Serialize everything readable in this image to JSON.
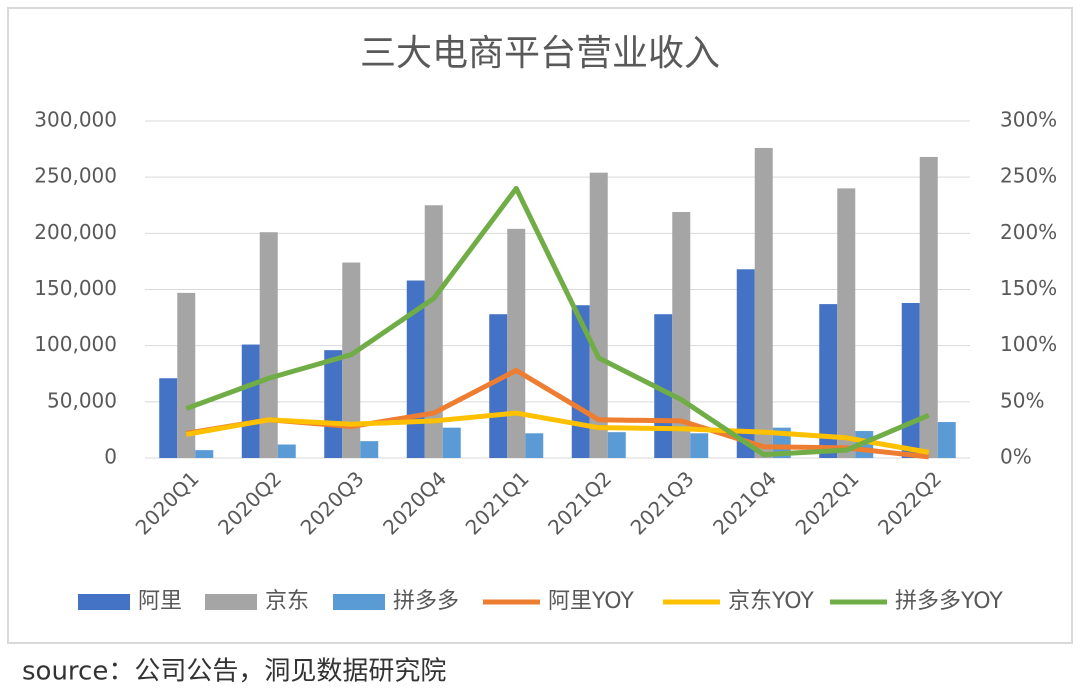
{
  "chart_data": {
    "type": "combo",
    "title": "三大电商平台营业收入",
    "categories": [
      "2020Q1",
      "2020Q2",
      "2020Q3",
      "2020Q4",
      "2021Q1",
      "2021Q2",
      "2021Q3",
      "2021Q4",
      "2022Q1",
      "2022Q2"
    ],
    "series": [
      {
        "name": "阿里",
        "type": "bar",
        "color": "#4472c4",
        "values": [
          71000,
          101000,
          96000,
          158000,
          128000,
          136000,
          128000,
          168000,
          137000,
          138000
        ]
      },
      {
        "name": "京东",
        "type": "bar",
        "color": "#a5a5a5",
        "values": [
          147000,
          201000,
          174000,
          225000,
          204000,
          254000,
          219000,
          276000,
          240000,
          268000
        ]
      },
      {
        "name": "拼多多",
        "type": "bar",
        "color": "#5b9bd5",
        "values": [
          7000,
          12000,
          15000,
          27000,
          22000,
          23000,
          22000,
          27000,
          24000,
          32000
        ]
      },
      {
        "name": "阿里YOY",
        "type": "line",
        "axis": "y2",
        "color": "#ed7d31",
        "values": [
          22,
          34,
          28,
          40,
          78,
          34,
          33,
          10,
          9,
          1
        ]
      },
      {
        "name": "京东YOY",
        "type": "line",
        "axis": "y2",
        "color": "#ffc000",
        "values": [
          21,
          34,
          30,
          33,
          40,
          27,
          26,
          23,
          18,
          5
        ]
      },
      {
        "name": "拼多多YOY",
        "type": "line",
        "axis": "y2",
        "color": "#70ad47",
        "values": [
          44,
          71,
          92,
          142,
          240,
          89,
          52,
          3,
          7,
          38
        ]
      }
    ],
    "ylim": [
      0,
      300000
    ],
    "yticks": [
      0,
      {
        "value": 50000,
        "label": "50,000"
      },
      {
        "value": 100000,
        "label": "100,000"
      },
      {
        "value": 150000,
        "label": "150,000"
      },
      {
        "value": 200000,
        "label": "200,000"
      },
      {
        "value": 250000,
        "label": "250,000"
      },
      {
        "value": 300000,
        "label": "300,000"
      }
    ],
    "y2lim": [
      0,
      300
    ],
    "y2ticks": [
      {
        "value": 0,
        "label": "0%"
      },
      {
        "value": 50,
        "label": "50%"
      },
      {
        "value": 100,
        "label": "100%"
      },
      {
        "value": 150,
        "label": "150%"
      },
      {
        "value": 200,
        "label": "200%"
      },
      {
        "value": 250,
        "label": "250%"
      },
      {
        "value": 300,
        "label": "300%"
      }
    ],
    "grid": true,
    "legend": "bottom",
    "source": "source：公司公告，洞见数据研究院"
  }
}
